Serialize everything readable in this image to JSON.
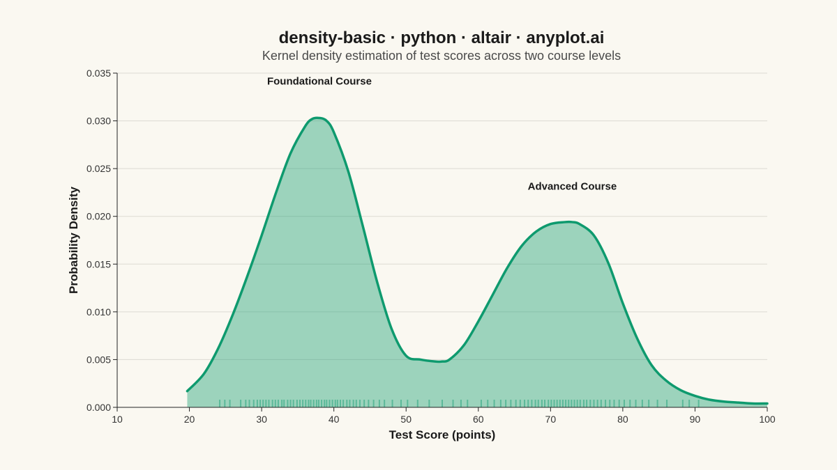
{
  "colors": {
    "background": "#FAF8F1",
    "density_line": "#0E9A6E",
    "density_fill": "#0E9A6E",
    "rug": "#0E9A6E",
    "grid": "#DCDAD3",
    "axis": "#222222"
  },
  "chart_data": {
    "type": "area",
    "title": "density-basic · python · altair · anyplot.ai",
    "subtitle": "Kernel density estimation of test scores across two course levels",
    "xlabel": "Test Score (points)",
    "ylabel": "Probability Density",
    "xlim": [
      10,
      100
    ],
    "ylim": [
      0,
      0.035
    ],
    "x_ticks": [
      10,
      20,
      30,
      40,
      50,
      60,
      70,
      80,
      90,
      100
    ],
    "y_ticks": [
      "0.000",
      "0.005",
      "0.010",
      "0.015",
      "0.020",
      "0.025",
      "0.030",
      "0.035"
    ],
    "grid": true,
    "series": [
      {
        "x": [
          19.7,
          22,
          24,
          26,
          28,
          30,
          32,
          34,
          36,
          37,
          38,
          39,
          40,
          42,
          44,
          46,
          48,
          50,
          52,
          54,
          55,
          56,
          58,
          60,
          62,
          64,
          66,
          68,
          70,
          72,
          73,
          74,
          76,
          78,
          80,
          82,
          84,
          86,
          88,
          90,
          92,
          94,
          96,
          98,
          100
        ],
        "y": [
          0.0017,
          0.0035,
          0.0062,
          0.0097,
          0.0137,
          0.018,
          0.0225,
          0.0266,
          0.0294,
          0.0302,
          0.0303,
          0.03,
          0.0288,
          0.0247,
          0.019,
          0.0131,
          0.0082,
          0.0054,
          0.005,
          0.0048,
          0.0048,
          0.005,
          0.0065,
          0.009,
          0.0118,
          0.0146,
          0.0169,
          0.0184,
          0.0192,
          0.0194,
          0.0194,
          0.0192,
          0.018,
          0.0151,
          0.0109,
          0.0072,
          0.0044,
          0.0028,
          0.0018,
          0.0012,
          0.0008,
          0.0006,
          0.0005,
          0.0004,
          0.0004
        ]
      }
    ],
    "rug": [
      24.2,
      24.9,
      25.6,
      27.1,
      27.8,
      28.3,
      28.9,
      29.4,
      29.8,
      30.2,
      30.6,
      31.0,
      31.5,
      31.9,
      32.3,
      32.8,
      33.1,
      33.6,
      34.0,
      34.4,
      34.9,
      35.3,
      35.7,
      36.1,
      36.5,
      36.8,
      37.2,
      37.6,
      37.9,
      38.3,
      38.7,
      39.0,
      39.4,
      39.8,
      40.2,
      40.5,
      40.9,
      41.3,
      41.8,
      42.2,
      42.7,
      43.1,
      43.6,
      44.2,
      44.8,
      45.5,
      46.3,
      47.0,
      48.1,
      49.3,
      50.2,
      51.6,
      53.2,
      55.0,
      56.5,
      57.6,
      58.5,
      60.4,
      61.3,
      62.2,
      63.1,
      63.8,
      64.5,
      65.2,
      65.8,
      66.4,
      66.9,
      67.4,
      67.9,
      68.3,
      68.8,
      69.2,
      69.7,
      70.1,
      70.5,
      70.9,
      71.3,
      71.7,
      72.1,
      72.5,
      72.9,
      73.3,
      73.7,
      74.1,
      74.6,
      75.0,
      75.5,
      76.0,
      76.5,
      77.0,
      77.6,
      78.2,
      78.8,
      79.5,
      80.2,
      81.0,
      81.8,
      82.7,
      83.6,
      84.8,
      86.1,
      88.3,
      89.2,
      90.5
    ],
    "annotations": [
      {
        "text": "Foundational Course",
        "x": 38,
        "y": 0.0338
      },
      {
        "text": "Advanced Course",
        "x": 73,
        "y": 0.0228
      }
    ]
  }
}
